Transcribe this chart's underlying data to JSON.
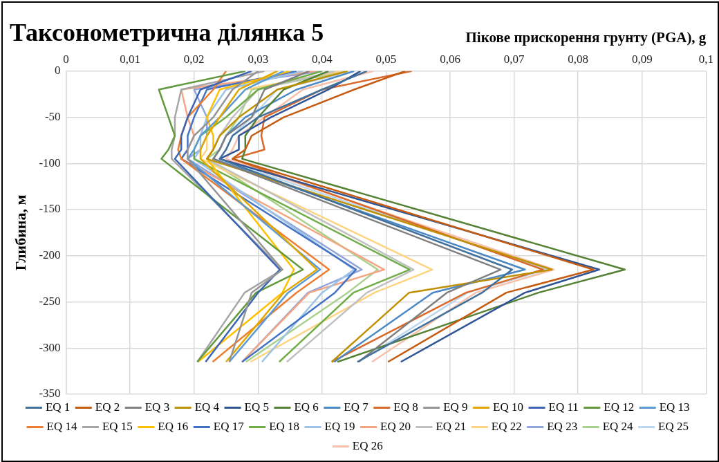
{
  "chart_data": {
    "type": "line",
    "title": "Таксонометрична ділянка 5",
    "xlabel": "Пікове прискорення грунту (PGA), g",
    "ylabel": "Глибина, м",
    "xlim": [
      0,
      0.1
    ],
    "xticks": [
      0,
      {
        "value": 0.01,
        "label": "0,01"
      },
      {
        "value": 0.02,
        "label": "0,02"
      },
      {
        "value": 0.03,
        "label": "0,03"
      },
      {
        "value": 0.04,
        "label": "0,04"
      },
      {
        "value": 0.05,
        "label": "0,05"
      },
      {
        "value": 0.06,
        "label": "0,06"
      },
      {
        "value": 0.07,
        "label": "0,07"
      },
      {
        "value": 0.08,
        "label": "0,08"
      },
      {
        "value": 0.09,
        "label": "0,09"
      },
      {
        "value": 0.1,
        "label": "0,1"
      }
    ],
    "ylim": [
      -350,
      0
    ],
    "yticks": [
      -350,
      -300,
      -250,
      -200,
      -150,
      -100,
      -50,
      0
    ],
    "grid": true,
    "legend": "bottom",
    "marker": "none",
    "line_style": "solid",
    "series": [
      {
        "name": "EQ 1",
        "color": "#41719c",
        "x": [
          0.047,
          0.04,
          0.03,
          0.026,
          0.025,
          0.024,
          0.0697,
          0.065,
          0.0455
        ],
        "values": [
          0,
          -20,
          -50,
          -70,
          -85,
          -95,
          -215,
          -240,
          -315
        ]
      },
      {
        "name": "EQ 2",
        "color": "#c55a11",
        "x": [
          0.053,
          0.045,
          0.034,
          0.029,
          0.028,
          0.026,
          0.0824,
          0.0688,
          0.0503
        ],
        "values": [
          0,
          -20,
          -50,
          -70,
          -85,
          -95,
          -215,
          -240,
          -315
        ]
      },
      {
        "name": "EQ 3",
        "color": "#7f7f7f",
        "x": [
          0.038,
          0.031,
          0.029,
          0.025,
          0.024,
          0.023,
          0.0679,
          0.0595,
          0.0457
        ],
        "values": [
          0,
          -20,
          -50,
          -70,
          -85,
          -95,
          -215,
          -240,
          -315
        ]
      },
      {
        "name": "EQ 4",
        "color": "#bf9000",
        "x": [
          0.044,
          0.033,
          0.027,
          0.024,
          0.023,
          0.022,
          0.0759,
          0.0536,
          0.0415
        ],
        "values": [
          0,
          -20,
          -50,
          -70,
          -85,
          -95,
          -215,
          -240,
          -315
        ]
      },
      {
        "name": "EQ 5",
        "color": "#2f5597",
        "x": [
          0.046,
          0.041,
          0.032,
          0.027,
          0.027,
          0.024,
          0.0833,
          0.0717,
          0.0523
        ],
        "values": [
          0,
          -20,
          -50,
          -70,
          -85,
          -95,
          -215,
          -240,
          -315
        ]
      },
      {
        "name": "EQ 6",
        "color": "#548235",
        "x": [
          0.041,
          0.034,
          0.03,
          0.028,
          0.028,
          0.0275,
          0.0873,
          0.0738,
          0.0424
        ],
        "values": [
          0,
          -20,
          -50,
          -70,
          -85,
          -95,
          -215,
          -240,
          -315
        ]
      },
      {
        "name": "EQ 7",
        "color": "#4a89c5",
        "x": [
          0.045,
          0.036,
          0.028,
          0.025,
          0.024,
          0.023,
          0.0717,
          0.0573,
          0.0419
        ],
        "values": [
          0,
          -20,
          -50,
          -70,
          -85,
          -95,
          -215,
          -240,
          -315
        ]
      },
      {
        "name": "EQ 8",
        "color": "#d8692a",
        "x": [
          0.054,
          0.04,
          0.031,
          0.0305,
          0.031,
          0.026,
          0.0745,
          0.0625,
          0.0415
        ],
        "values": [
          0,
          -20,
          -50,
          -70,
          -85,
          -95,
          -215,
          -240,
          -315
        ]
      },
      {
        "name": "EQ 9",
        "color": "#959595",
        "x": [
          0.03,
          0.026,
          0.023,
          0.02,
          0.019,
          0.019,
          0.0338,
          0.029,
          0.0255
        ],
        "values": [
          0,
          -20,
          -50,
          -70,
          -85,
          -95,
          -215,
          -240,
          -315
        ]
      },
      {
        "name": "EQ 10",
        "color": "#e0a800",
        "x": [
          0.033,
          0.027,
          0.024,
          0.022,
          0.021,
          0.021,
          0.0392,
          0.034,
          0.025
        ],
        "values": [
          0,
          -20,
          -50,
          -70,
          -85,
          -95,
          -215,
          -240,
          -315
        ]
      },
      {
        "name": "EQ 11",
        "color": "#3a64b4",
        "x": [
          0.029,
          0.021,
          0.019,
          0.018,
          0.018,
          0.017,
          0.0334,
          0.03,
          0.0218
        ],
        "values": [
          0,
          -20,
          -50,
          -70,
          -85,
          -95,
          -215,
          -240,
          -315
        ]
      },
      {
        "name": "EQ 12",
        "color": "#62993d",
        "x": [
          0.028,
          0.0145,
          0.016,
          0.017,
          0.016,
          0.0149,
          0.037,
          0.0297,
          0.0205
        ],
        "values": [
          0,
          -20,
          -50,
          -70,
          -85,
          -95,
          -215,
          -240,
          -315
        ]
      },
      {
        "name": "EQ 13",
        "color": "#5b9bd5",
        "x": [
          0.034,
          0.028,
          0.024,
          0.021,
          0.02,
          0.019,
          0.0397,
          0.0347,
          0.0255
        ],
        "values": [
          0,
          -20,
          -50,
          -70,
          -85,
          -95,
          -215,
          -240,
          -315
        ]
      },
      {
        "name": "EQ 14",
        "color": "#ed7d31",
        "x": [
          0.025,
          0.023,
          0.019,
          0.018,
          0.0175,
          0.018,
          0.0411,
          0.036,
          0.0229
        ],
        "values": [
          0,
          -20,
          -50,
          -70,
          -85,
          -95,
          -215,
          -240,
          -315
        ]
      },
      {
        "name": "EQ 15",
        "color": "#a5a5a5",
        "x": [
          0.031,
          0.018,
          0.017,
          0.017,
          0.0165,
          0.0165,
          0.0338,
          0.0279,
          0.0205
        ],
        "values": [
          0,
          -20,
          -50,
          -70,
          -85,
          -95,
          -215,
          -240,
          -315
        ]
      },
      {
        "name": "EQ 16",
        "color": "#ffc000",
        "x": [
          0.035,
          0.024,
          0.022,
          0.023,
          0.023,
          0.022,
          0.0356,
          0.0338,
          0.0206
        ],
        "values": [
          0,
          -20,
          -50,
          -70,
          -85,
          -95,
          -215,
          -240,
          -315
        ]
      },
      {
        "name": "EQ 17",
        "color": "#4472c4",
        "x": [
          0.036,
          0.022,
          0.02,
          0.019,
          0.019,
          0.018,
          0.0453,
          0.042,
          0.0275
        ],
        "values": [
          0,
          -20,
          -50,
          -70,
          -85,
          -95,
          -215,
          -240,
          -315
        ]
      },
      {
        "name": "EQ 18",
        "color": "#70ad47",
        "x": [
          0.04,
          0.03,
          0.025,
          0.021,
          0.02,
          0.02,
          0.0537,
          0.0449,
          0.0333
        ],
        "values": [
          0,
          -20,
          -50,
          -70,
          -85,
          -95,
          -215,
          -240,
          -315
        ]
      },
      {
        "name": "EQ 19",
        "color": "#9dc3e6",
        "x": [
          0.037,
          0.025,
          0.022,
          0.021,
          0.021,
          0.02,
          0.045,
          0.04,
          0.0306
        ],
        "values": [
          0,
          -20,
          -50,
          -70,
          -85,
          -95,
          -215,
          -240,
          -315
        ]
      },
      {
        "name": "EQ 20",
        "color": "#f4a582",
        "x": [
          0.039,
          0.018,
          0.019,
          0.02,
          0.019,
          0.018,
          0.0497,
          0.038,
          0.0275
        ],
        "values": [
          0,
          -20,
          -50,
          -70,
          -85,
          -95,
          -215,
          -240,
          -315
        ]
      },
      {
        "name": "EQ 21",
        "color": "#c0c0c0",
        "x": [
          0.042,
          0.03,
          0.026,
          0.024,
          0.023,
          0.022,
          0.0543,
          0.047,
          0.0345
        ],
        "values": [
          0,
          -20,
          -50,
          -70,
          -85,
          -95,
          -215,
          -240,
          -315
        ]
      },
      {
        "name": "EQ 22",
        "color": "#ffd480",
        "x": [
          0.043,
          0.028,
          0.024,
          0.022,
          0.022,
          0.021,
          0.0572,
          0.0482,
          0.0288
        ],
        "values": [
          0,
          -20,
          -50,
          -70,
          -85,
          -95,
          -215,
          -240,
          -315
        ]
      },
      {
        "name": "EQ 23",
        "color": "#8fa5dc",
        "x": [
          0.04,
          0.02,
          0.022,
          0.022,
          0.021,
          0.019,
          0.0462,
          0.0378,
          0.0275
        ],
        "values": [
          0,
          -20,
          -50,
          -70,
          -85,
          -95,
          -215,
          -240,
          -315
        ]
      },
      {
        "name": "EQ 24",
        "color": "#a9d18e",
        "x": [
          0.044,
          0.029,
          0.027,
          0.025,
          0.024,
          0.022,
          0.0487,
          0.044,
          0.0281
        ],
        "values": [
          0,
          -20,
          -50,
          -70,
          -85,
          -95,
          -215,
          -240,
          -315
        ]
      },
      {
        "name": "EQ 25",
        "color": "#bdd7ee",
        "x": [
          0.045,
          0.033,
          0.029,
          0.026,
          0.025,
          0.024,
          0.0751,
          0.0627,
          0.0457
        ],
        "values": [
          0,
          -20,
          -50,
          -70,
          -85,
          -95,
          -215,
          -240,
          -315
        ]
      },
      {
        "name": "EQ 26",
        "color": "#f8c0a8",
        "x": [
          0.048,
          0.037,
          0.031,
          0.027,
          0.026,
          0.025,
          0.0762,
          0.064,
          0.0478
        ],
        "values": [
          0,
          -20,
          -50,
          -70,
          -85,
          -95,
          -215,
          -240,
          -315
        ]
      }
    ]
  }
}
